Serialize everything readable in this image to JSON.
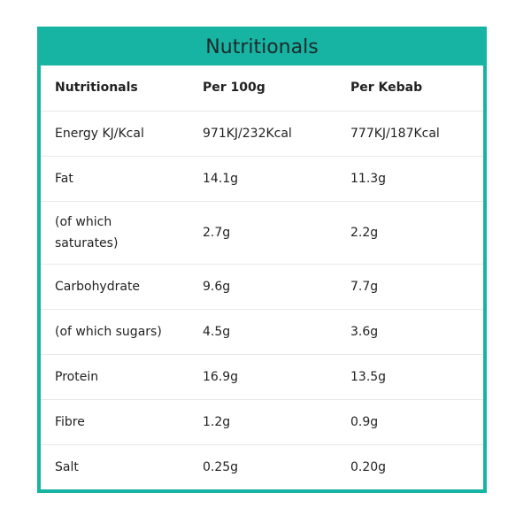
{
  "title": "Nutritionals",
  "table": {
    "header": [
      "Nutritionals",
      "Per 100g",
      "Per Kebab"
    ],
    "rows": [
      [
        "Energy KJ/Kcal",
        "971KJ/232Kcal",
        "777KJ/187Kcal"
      ],
      [
        "Fat",
        "14.1g",
        "11.3g"
      ],
      [
        "(of which saturates)",
        "2.7g",
        "2.2g"
      ],
      [
        "Carbohydrate",
        "9.6g",
        "7.7g"
      ],
      [
        "(of which sugars)",
        "4.5g",
        "3.6g"
      ],
      [
        "Protein",
        "16.9g",
        "13.5g"
      ],
      [
        "Fibre",
        "1.2g",
        "0.9g"
      ],
      [
        "Salt",
        "0.25g",
        "0.20g"
      ]
    ]
  }
}
